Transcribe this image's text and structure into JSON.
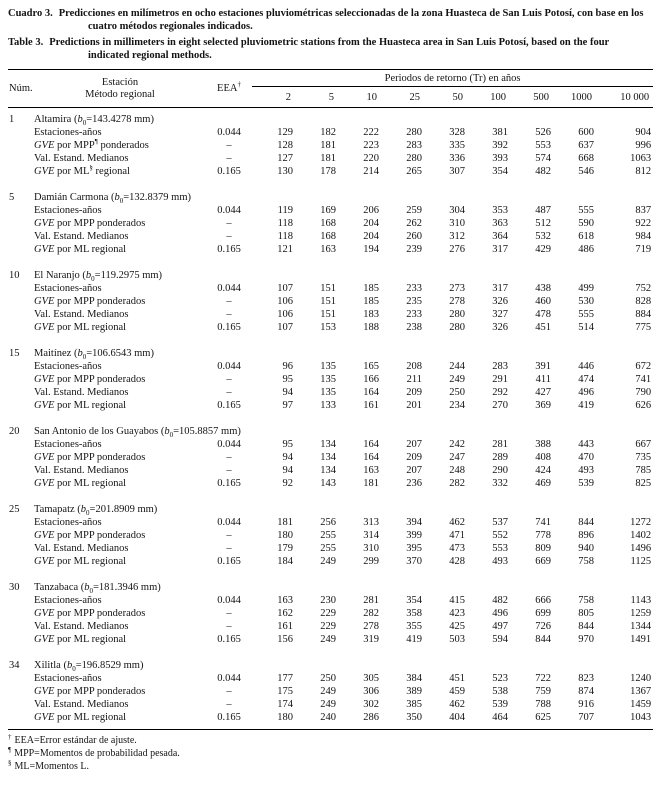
{
  "caption": {
    "es_label": "Cuadro 3.",
    "es_text": "Predicciones en milímetros en ocho estaciones pluviométricas seleccionadas de la zona Huasteca de San Luis Potosí, con base en los cuatro métodos regionales indicados.",
    "en_label": "Table 3.",
    "en_text": "Predictions in millimeters in eight selected pluviometric stations from the Huasteca area in San Luis Potosí, based on the four indicated regional methods."
  },
  "header": {
    "num": "Núm.",
    "station_line1": "Estación",
    "station_line2": "Método regional",
    "eea": "EEA",
    "eea_sup": "†",
    "periods": "Periodos de retorno (Tr) en años",
    "tr_values": [
      "2",
      "5",
      "10",
      "25",
      "50",
      "100",
      "500",
      "1000",
      "10 000"
    ]
  },
  "eea_column": [
    "0.044",
    "–",
    "–",
    "0.165"
  ],
  "methods": [
    {
      "segs": [
        {
          "t": "Estaciones-años"
        }
      ]
    },
    {
      "segs": [
        {
          "t": "GVE",
          "i": true
        },
        {
          "t": " por MPP"
        },
        {
          "t": "¶",
          "sup": true,
          "first_only": true
        },
        {
          "t": " ponderados"
        }
      ]
    },
    {
      "segs": [
        {
          "t": "Val. Estand. Medianos"
        }
      ]
    },
    {
      "segs": [
        {
          "t": "GVE",
          "i": true
        },
        {
          "t": " por ML"
        },
        {
          "t": "§",
          "sup": true,
          "first_only": true
        },
        {
          "t": " regional"
        }
      ]
    }
  ],
  "chart_data": {
    "type": "table",
    "title": "Predicciones en milímetros en ocho estaciones pluviométricas (Huasteca, San Luis Potosí)",
    "columns": [
      "2",
      "5",
      "10",
      "25",
      "50",
      "100",
      "500",
      "1000",
      "10 000"
    ]
  },
  "stations": [
    {
      "num": "1",
      "name": "Altamira",
      "b0": "143.4278",
      "values": [
        [
          129,
          182,
          222,
          280,
          328,
          381,
          526,
          600,
          904
        ],
        [
          128,
          181,
          223,
          283,
          335,
          392,
          553,
          637,
          996
        ],
        [
          127,
          181,
          220,
          280,
          336,
          393,
          574,
          668,
          1063
        ],
        [
          130,
          178,
          214,
          265,
          307,
          354,
          482,
          546,
          812
        ]
      ]
    },
    {
      "num": "5",
      "name": "Damián Carmona",
      "b0": "132.8379",
      "values": [
        [
          119,
          169,
          206,
          259,
          304,
          353,
          487,
          555,
          837
        ],
        [
          118,
          168,
          204,
          262,
          310,
          363,
          512,
          590,
          922
        ],
        [
          118,
          168,
          204,
          260,
          312,
          364,
          532,
          618,
          984
        ],
        [
          121,
          163,
          194,
          239,
          276,
          317,
          429,
          486,
          719
        ]
      ]
    },
    {
      "num": "10",
      "name": "El Naranjo",
      "b0": "119.2975",
      "values": [
        [
          107,
          151,
          185,
          233,
          273,
          317,
          438,
          499,
          752
        ],
        [
          106,
          151,
          185,
          235,
          278,
          326,
          460,
          530,
          828
        ],
        [
          106,
          151,
          183,
          233,
          280,
          327,
          478,
          555,
          884
        ],
        [
          107,
          153,
          188,
          238,
          280,
          326,
          451,
          514,
          775
        ]
      ]
    },
    {
      "num": "15",
      "name": "Maitínez",
      "b0": "106.6543",
      "values": [
        [
          96,
          135,
          165,
          208,
          244,
          283,
          391,
          446,
          672
        ],
        [
          95,
          135,
          166,
          211,
          249,
          291,
          411,
          474,
          741
        ],
        [
          94,
          135,
          164,
          209,
          250,
          292,
          427,
          496,
          790
        ],
        [
          97,
          133,
          161,
          201,
          234,
          270,
          369,
          419,
          626
        ]
      ]
    },
    {
      "num": "20",
      "name": "San Antonio de los Guayabos",
      "b0": "105.8857",
      "values": [
        [
          95,
          134,
          164,
          207,
          242,
          281,
          388,
          443,
          667
        ],
        [
          94,
          134,
          164,
          209,
          247,
          289,
          408,
          470,
          735
        ],
        [
          94,
          134,
          163,
          207,
          248,
          290,
          424,
          493,
          785
        ],
        [
          92,
          143,
          181,
          236,
          282,
          332,
          469,
          539,
          825
        ]
      ]
    },
    {
      "num": "25",
      "name": "Tamapatz",
      "b0": "201.8909",
      "values": [
        [
          181,
          256,
          313,
          394,
          462,
          537,
          741,
          844,
          1272
        ],
        [
          180,
          255,
          314,
          399,
          471,
          552,
          778,
          896,
          1402
        ],
        [
          179,
          255,
          310,
          395,
          473,
          553,
          809,
          940,
          1496
        ],
        [
          184,
          249,
          299,
          370,
          428,
          493,
          669,
          758,
          1125
        ]
      ]
    },
    {
      "num": "30",
      "name": "Tanzabaca",
      "b0": "181.3946",
      "values": [
        [
          163,
          230,
          281,
          354,
          415,
          482,
          666,
          758,
          1143
        ],
        [
          162,
          229,
          282,
          358,
          423,
          496,
          699,
          805,
          1259
        ],
        [
          161,
          229,
          278,
          355,
          425,
          497,
          726,
          844,
          1344
        ],
        [
          156,
          249,
          319,
          419,
          503,
          594,
          844,
          970,
          1491
        ]
      ]
    },
    {
      "num": "34",
      "name": "Xilitla",
      "b0": "196.8529",
      "values": [
        [
          177,
          250,
          305,
          384,
          451,
          523,
          722,
          823,
          1240
        ],
        [
          175,
          249,
          306,
          389,
          459,
          538,
          759,
          874,
          1367
        ],
        [
          174,
          249,
          302,
          385,
          462,
          539,
          788,
          916,
          1459
        ],
        [
          180,
          240,
          286,
          350,
          404,
          464,
          625,
          707,
          1043
        ]
      ]
    }
  ],
  "footnotes": [
    {
      "sym": "†",
      "text": "EEA=Error estándar de ajuste."
    },
    {
      "sym": "¶",
      "text": "MPP=Momentos de probabilidad pesada."
    },
    {
      "sym": "§",
      "text": "ML=Momentos L."
    }
  ]
}
